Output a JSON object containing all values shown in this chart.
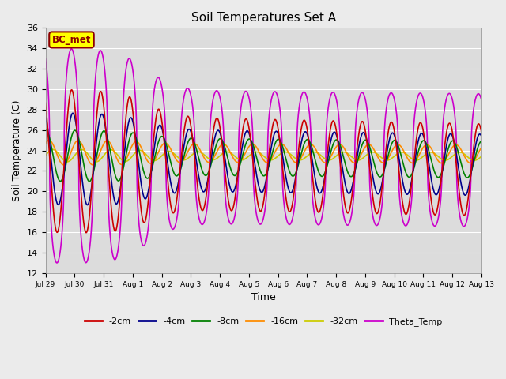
{
  "title": "Soil Temperatures Set A",
  "xlabel": "Time",
  "ylabel": "Soil Temperature (C)",
  "ylim": [
    12,
    36
  ],
  "yticks": [
    12,
    14,
    16,
    18,
    20,
    22,
    24,
    26,
    28,
    30,
    32,
    34,
    36
  ],
  "xtick_labels": [
    "Jul 29",
    "Jul 30",
    "Jul 31",
    "Aug 1",
    "Aug 2",
    "Aug 3",
    "Aug 4",
    "Aug 5",
    "Aug 6",
    "Aug 7",
    "Aug 8",
    "Aug 9",
    "Aug 10",
    "Aug 11",
    "Aug 12",
    "Aug 13"
  ],
  "annotation_text": "BC_met",
  "annotation_bg": "#FFFF00",
  "annotation_border": "#8B0000",
  "plot_bg": "#DCDCDC",
  "fig_bg": "#EBEBEB",
  "lines": [
    {
      "label": "-2cm",
      "color": "#CC0000",
      "lw": 1.2
    },
    {
      "label": "-4cm",
      "color": "#00008B",
      "lw": 1.2
    },
    {
      "label": "-8cm",
      "color": "#008000",
      "lw": 1.2
    },
    {
      "label": "-16cm",
      "color": "#FF8C00",
      "lw": 1.2
    },
    {
      "label": "-32cm",
      "color": "#CCCC00",
      "lw": 1.2
    },
    {
      "label": "Theta_Temp",
      "color": "#CC00CC",
      "lw": 1.2
    }
  ],
  "days": 16,
  "samples_per_day": 240,
  "mean_2cm": 23.0,
  "mean_4cm": 23.2,
  "mean_8cm": 23.5,
  "mean_16cm": 23.8,
  "mean_32cm": 23.5,
  "mean_theta": 23.5
}
